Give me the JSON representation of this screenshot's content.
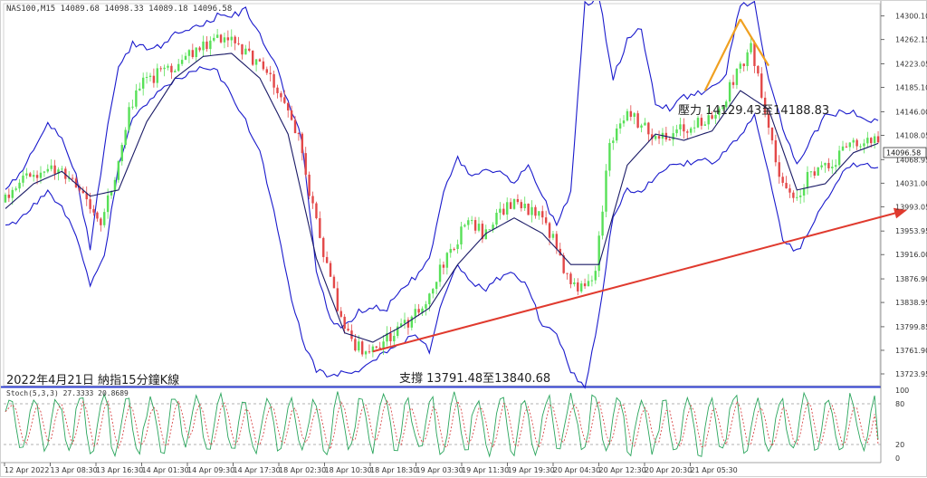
{
  "symbol_info": "NAS100,M15  14089.68 14098.33 14089.18 14096.58",
  "stoch_label": "Stoch(5,3,3) 27.3333 20.8689",
  "price_tag": "14096.58",
  "annotations": {
    "resistance": "壓力 14129.43至14188.83",
    "support": "支撐 13791.48至13840.68",
    "title": "2022年4月21日 納指15分鐘K線"
  },
  "colors": {
    "bands": "#1a1acc",
    "up_candle": "#58e058",
    "down_candle": "#e34848",
    "ma": "#1a1a66",
    "support_arrow": "#e03a2e",
    "resistance_lines": "#f0a020",
    "stoch_main": "#2aa55c",
    "stoch_signal": "#d94a4a",
    "separator": "#3040d0"
  },
  "chart_data": [
    {
      "type": "candlestick",
      "name": "price",
      "y_ticks": [
        "14300.10",
        "14262.15",
        "14223.05",
        "14185.10",
        "14146.00",
        "14108.05",
        "14068.95",
        "14031.00",
        "13993.05",
        "13953.95",
        "13916.00",
        "13876.90",
        "13838.95",
        "13799.85",
        "13761.90",
        "13723.95"
      ],
      "ylim": [
        13705,
        14320
      ],
      "last_price": 14096.58,
      "x_ticks": [
        "12 Apr 2022",
        "13 Apr 08:30",
        "13 Apr 16:30",
        "14 Apr 01:30",
        "14 Apr 09:30",
        "14 Apr 17:30",
        "18 Apr 02:30",
        "18 Apr 10:30",
        "18 Apr 18:30",
        "19 Apr 03:30",
        "19 Apr 11:30",
        "19 Apr 19:30",
        "20 Apr 04:30",
        "20 Apr 12:30",
        "20 Apr 20:30",
        "21 Apr 05:30"
      ],
      "close_path": [
        [
          0,
          14000
        ],
        [
          4,
          14020
        ],
        [
          8,
          14045
        ],
        [
          12,
          14055
        ],
        [
          16,
          14050
        ],
        [
          20,
          14040
        ],
        [
          24,
          14005
        ],
        [
          28,
          13960
        ],
        [
          32,
          14045
        ],
        [
          36,
          14150
        ],
        [
          40,
          14190
        ],
        [
          44,
          14205
        ],
        [
          48,
          14215
        ],
        [
          52,
          14235
        ],
        [
          56,
          14250
        ],
        [
          60,
          14265
        ],
        [
          64,
          14270
        ],
        [
          68,
          14245
        ],
        [
          72,
          14225
        ],
        [
          76,
          14200
        ],
        [
          80,
          14165
        ],
        [
          84,
          14100
        ],
        [
          88,
          13990
        ],
        [
          92,
          13900
        ],
        [
          96,
          13810
        ],
        [
          100,
          13770
        ],
        [
          104,
          13760
        ],
        [
          108,
          13775
        ],
        [
          112,
          13790
        ],
        [
          116,
          13815
        ],
        [
          120,
          13840
        ],
        [
          124,
          13890
        ],
        [
          128,
          13930
        ],
        [
          132,
          13980
        ],
        [
          136,
          13950
        ],
        [
          140,
          13975
        ],
        [
          144,
          14000
        ],
        [
          148,
          13990
        ],
        [
          152,
          13975
        ],
        [
          156,
          13940
        ],
        [
          160,
          13880
        ],
        [
          164,
          13860
        ],
        [
          168,
          13890
        ],
        [
          172,
          14100
        ],
        [
          176,
          14140
        ],
        [
          180,
          14130
        ],
        [
          184,
          14110
        ],
        [
          188,
          14110
        ],
        [
          192,
          14115
        ],
        [
          196,
          14130
        ],
        [
          200,
          14130
        ],
        [
          204,
          14160
        ],
        [
          208,
          14210
        ],
        [
          212,
          14250
        ],
        [
          216,
          14150
        ],
        [
          220,
          14040
        ],
        [
          224,
          14000
        ],
        [
          228,
          14040
        ],
        [
          232,
          14050
        ],
        [
          236,
          14070
        ],
        [
          240,
          14095
        ],
        [
          244,
          14100
        ],
        [
          247,
          14096.58
        ]
      ],
      "upper_band_path": [
        [
          0,
          14025
        ],
        [
          4,
          14045
        ],
        [
          8,
          14085
        ],
        [
          12,
          14125
        ],
        [
          16,
          14105
        ],
        [
          20,
          14045
        ],
        [
          24,
          13925
        ],
        [
          28,
          14090
        ],
        [
          32,
          14220
        ],
        [
          36,
          14255
        ],
        [
          40,
          14250
        ],
        [
          44,
          14250
        ],
        [
          48,
          14270
        ],
        [
          52,
          14280
        ],
        [
          56,
          14285
        ],
        [
          60,
          14300
        ],
        [
          64,
          14300
        ],
        [
          68,
          14310
        ],
        [
          72,
          14270
        ],
        [
          76,
          14230
        ],
        [
          80,
          14160
        ],
        [
          84,
          14100
        ],
        [
          88,
          13890
        ],
        [
          92,
          13810
        ],
        [
          96,
          13800
        ],
        [
          100,
          13825
        ],
        [
          104,
          13830
        ],
        [
          108,
          13830
        ],
        [
          112,
          13860
        ],
        [
          116,
          13880
        ],
        [
          120,
          13910
        ],
        [
          124,
          14020
        ],
        [
          128,
          14070
        ],
        [
          132,
          14040
        ],
        [
          136,
          14050
        ],
        [
          140,
          14050
        ],
        [
          144,
          14030
        ],
        [
          148,
          14060
        ],
        [
          152,
          14010
        ],
        [
          156,
          13960
        ],
        [
          160,
          14020
        ],
        [
          164,
          14320
        ],
        [
          168,
          14330
        ],
        [
          172,
          14200
        ],
        [
          176,
          14260
        ],
        [
          180,
          14280
        ],
        [
          184,
          14160
        ],
        [
          188,
          14150
        ],
        [
          192,
          14170
        ],
        [
          196,
          14175
        ],
        [
          200,
          14185
        ],
        [
          204,
          14210
        ],
        [
          208,
          14320
        ],
        [
          212,
          14320
        ],
        [
          216,
          14200
        ],
        [
          220,
          14120
        ],
        [
          224,
          14060
        ],
        [
          228,
          14100
        ],
        [
          232,
          14140
        ],
        [
          236,
          14145
        ],
        [
          240,
          14145
        ],
        [
          244,
          14135
        ],
        [
          247,
          14130
        ]
      ],
      "lower_band_path": [
        [
          0,
          13960
        ],
        [
          4,
          13970
        ],
        [
          8,
          13995
        ],
        [
          12,
          14015
        ],
        [
          16,
          13995
        ],
        [
          20,
          13945
        ],
        [
          24,
          13870
        ],
        [
          28,
          13910
        ],
        [
          32,
          14060
        ],
        [
          36,
          14140
        ],
        [
          40,
          14160
        ],
        [
          44,
          14180
        ],
        [
          48,
          14195
        ],
        [
          52,
          14210
        ],
        [
          56,
          14215
        ],
        [
          60,
          14210
        ],
        [
          64,
          14170
        ],
        [
          68,
          14130
        ],
        [
          72,
          14080
        ],
        [
          76,
          13990
        ],
        [
          80,
          13870
        ],
        [
          84,
          13780
        ],
        [
          88,
          13730
        ],
        [
          92,
          13720
        ],
        [
          96,
          13725
        ],
        [
          100,
          13730
        ],
        [
          104,
          13745
        ],
        [
          108,
          13760
        ],
        [
          112,
          13775
        ],
        [
          116,
          13790
        ],
        [
          120,
          13760
        ],
        [
          124,
          13850
        ],
        [
          128,
          13900
        ],
        [
          132,
          13870
        ],
        [
          136,
          13860
        ],
        [
          140,
          13880
        ],
        [
          144,
          13890
        ],
        [
          148,
          13860
        ],
        [
          152,
          13800
        ],
        [
          156,
          13790
        ],
        [
          160,
          13730
        ],
        [
          164,
          13700
        ],
        [
          168,
          13820
        ],
        [
          172,
          13980
        ],
        [
          176,
          14020
        ],
        [
          180,
          14020
        ],
        [
          184,
          14040
        ],
        [
          188,
          14060
        ],
        [
          192,
          14060
        ],
        [
          196,
          14070
        ],
        [
          200,
          14065
        ],
        [
          204,
          14080
        ],
        [
          208,
          14110
        ],
        [
          212,
          14140
        ],
        [
          216,
          14050
        ],
        [
          220,
          13940
        ],
        [
          224,
          13920
        ],
        [
          228,
          13960
        ],
        [
          232,
          14000
        ],
        [
          236,
          14040
        ],
        [
          240,
          14060
        ],
        [
          244,
          14060
        ],
        [
          247,
          14060
        ]
      ],
      "ma_path": [
        [
          0,
          13990
        ],
        [
          8,
          14030
        ],
        [
          16,
          14050
        ],
        [
          24,
          14010
        ],
        [
          32,
          14020
        ],
        [
          40,
          14130
        ],
        [
          48,
          14200
        ],
        [
          56,
          14235
        ],
        [
          64,
          14240
        ],
        [
          72,
          14200
        ],
        [
          80,
          14110
        ],
        [
          88,
          13910
        ],
        [
          96,
          13790
        ],
        [
          104,
          13775
        ],
        [
          112,
          13800
        ],
        [
          120,
          13830
        ],
        [
          128,
          13900
        ],
        [
          136,
          13950
        ],
        [
          144,
          13975
        ],
        [
          152,
          13950
        ],
        [
          160,
          13900
        ],
        [
          168,
          13900
        ],
        [
          176,
          14060
        ],
        [
          184,
          14110
        ],
        [
          192,
          14100
        ],
        [
          200,
          14115
        ],
        [
          208,
          14180
        ],
        [
          216,
          14150
        ],
        [
          224,
          14020
        ],
        [
          232,
          14030
        ],
        [
          240,
          14080
        ],
        [
          247,
          14095
        ]
      ],
      "support_arrow": [
        [
          104,
          13760
        ],
        [
          247,
          13987
        ]
      ],
      "resistance_lines": [
        [
          [
            198,
            14180
          ],
          [
            208,
            14295
          ]
        ],
        [
          [
            208,
            14295
          ],
          [
            216,
            14220
          ]
        ]
      ]
    },
    {
      "type": "line",
      "name": "stochastic",
      "ylim": [
        0,
        100
      ],
      "y_ticks": [
        "100",
        "80",
        "20",
        "0"
      ],
      "dashed_levels": [
        80,
        20
      ],
      "last_main": 27.3333,
      "last_signal": 20.8689
    }
  ]
}
